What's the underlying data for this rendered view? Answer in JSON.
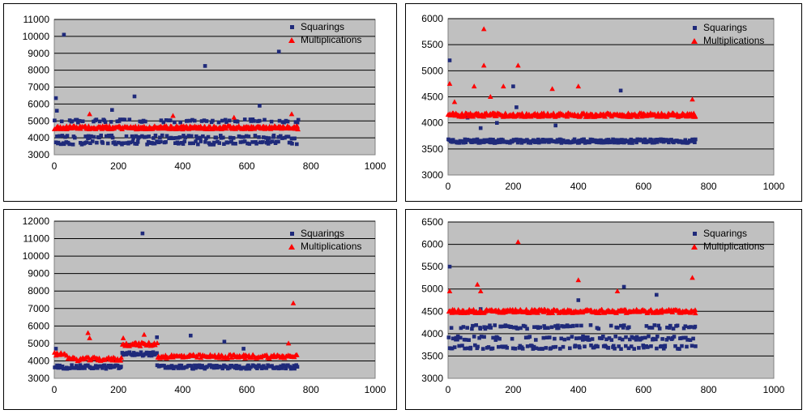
{
  "colors": {
    "plot_bg": "#c0c0c0",
    "squarings": "#1f2a7a",
    "multiplications": "#ff0000",
    "grid": "#000000"
  },
  "chart_data": [
    {
      "type": "scatter",
      "xlim": [
        0,
        1000
      ],
      "ylim": [
        3000,
        11000
      ],
      "xticks": [
        "0",
        "200",
        "400",
        "600",
        "800",
        "1000"
      ],
      "yticks": [
        "3000",
        "4000",
        "5000",
        "6000",
        "7000",
        "8000",
        "9000",
        "10000",
        "11000"
      ],
      "grid": true,
      "legend_position": "top-right",
      "series": [
        {
          "name": "Squarings",
          "marker": "square",
          "base_levels": [
            4050,
            5000,
            3700
          ],
          "x_range": [
            0,
            760
          ],
          "outliers": [
            [
              5,
              6350
            ],
            [
              30,
              10100
            ],
            [
              250,
              6450
            ],
            [
              470,
              8250
            ],
            [
              640,
              5900
            ],
            [
              700,
              9100
            ],
            [
              8,
              5600
            ],
            [
              180,
              5650
            ]
          ]
        },
        {
          "name": "Multiplications",
          "marker": "triangle",
          "base_levels": [
            4600
          ],
          "x_range": [
            0,
            760
          ],
          "outliers": [
            [
              110,
              5400
            ],
            [
              370,
              5300
            ],
            [
              560,
              5200
            ],
            [
              740,
              5400
            ]
          ]
        }
      ]
    },
    {
      "type": "scatter",
      "xlim": [
        0,
        1000
      ],
      "ylim": [
        3000,
        6000
      ],
      "xticks": [
        "0",
        "200",
        "400",
        "600",
        "800",
        "1000"
      ],
      "yticks": [
        "3000",
        "3500",
        "4000",
        "4500",
        "5000",
        "5500",
        "6000"
      ],
      "grid": true,
      "legend_position": "top-right",
      "series": [
        {
          "name": "Squarings",
          "marker": "square",
          "base_levels": [
            3650
          ],
          "x_range": [
            0,
            760
          ],
          "outliers": [
            [
              5,
              5200
            ],
            [
              200,
              4700
            ],
            [
              210,
              4300
            ],
            [
              530,
              4620
            ],
            [
              60,
              4100
            ],
            [
              100,
              3900
            ],
            [
              330,
              3950
            ],
            [
              150,
              4000
            ]
          ]
        },
        {
          "name": "Multiplications",
          "marker": "triangle",
          "base_levels": [
            4150
          ],
          "x_range": [
            0,
            760
          ],
          "outliers": [
            [
              5,
              4750
            ],
            [
              110,
              5800
            ],
            [
              110,
              5100
            ],
            [
              215,
              5100
            ],
            [
              80,
              4700
            ],
            [
              170,
              4700
            ],
            [
              320,
              4650
            ],
            [
              400,
              4700
            ],
            [
              750,
              4450
            ],
            [
              20,
              4400
            ],
            [
              130,
              4500
            ]
          ]
        }
      ]
    },
    {
      "type": "scatter",
      "xlim": [
        0,
        1000
      ],
      "ylim": [
        3000,
        12000
      ],
      "xticks": [
        "0",
        "200",
        "400",
        "600",
        "800",
        "1000"
      ],
      "yticks": [
        "3000",
        "4000",
        "5000",
        "6000",
        "7000",
        "8000",
        "9000",
        "10000",
        "11000",
        "12000"
      ],
      "grid": true,
      "legend_position": "top-right",
      "series": [
        {
          "name": "Squarings",
          "marker": "square",
          "segments": [
            [
              0,
              210,
              3650
            ],
            [
              210,
              320,
              4400
            ],
            [
              320,
              760,
              3650
            ]
          ],
          "outliers": [
            [
              275,
              11300
            ],
            [
              425,
              5450
            ],
            [
              530,
              5100
            ],
            [
              320,
              5350
            ],
            [
              5,
              4700
            ],
            [
              590,
              4700
            ]
          ]
        },
        {
          "name": "Multiplications",
          "marker": "triangle",
          "segments": [
            [
              0,
              40,
              4400
            ],
            [
              40,
              210,
              4100
            ],
            [
              210,
              320,
              4950
            ],
            [
              320,
              760,
              4250
            ]
          ],
          "outliers": [
            [
              105,
              5600
            ],
            [
              110,
              5300
            ],
            [
              280,
              5500
            ],
            [
              745,
              7300
            ],
            [
              730,
              5000
            ],
            [
              215,
              5300
            ]
          ]
        }
      ]
    },
    {
      "type": "scatter",
      "xlim": [
        0,
        1000
      ],
      "ylim": [
        3000,
        6500
      ],
      "xticks": [
        "0",
        "200",
        "400",
        "600",
        "800",
        "1000"
      ],
      "yticks": [
        "3000",
        "3500",
        "4000",
        "4500",
        "5000",
        "5500",
        "6000",
        "6500"
      ],
      "grid": true,
      "legend_position": "top-right",
      "series": [
        {
          "name": "Squarings",
          "marker": "square",
          "base_levels": [
            3700,
            3900,
            4150
          ],
          "x_range": [
            0,
            760
          ],
          "outliers": [
            [
              5,
              5500
            ],
            [
              540,
              5050
            ],
            [
              640,
              4870
            ],
            [
              100,
              4550
            ],
            [
              400,
              4750
            ]
          ]
        },
        {
          "name": "Multiplications",
          "marker": "triangle",
          "base_levels": [
            4500
          ],
          "x_range": [
            0,
            760
          ],
          "outliers": [
            [
              5,
              4950
            ],
            [
              215,
              6050
            ],
            [
              90,
              5100
            ],
            [
              100,
              4950
            ],
            [
              400,
              5200
            ],
            [
              750,
              5250
            ],
            [
              520,
              4950
            ]
          ]
        }
      ]
    }
  ]
}
